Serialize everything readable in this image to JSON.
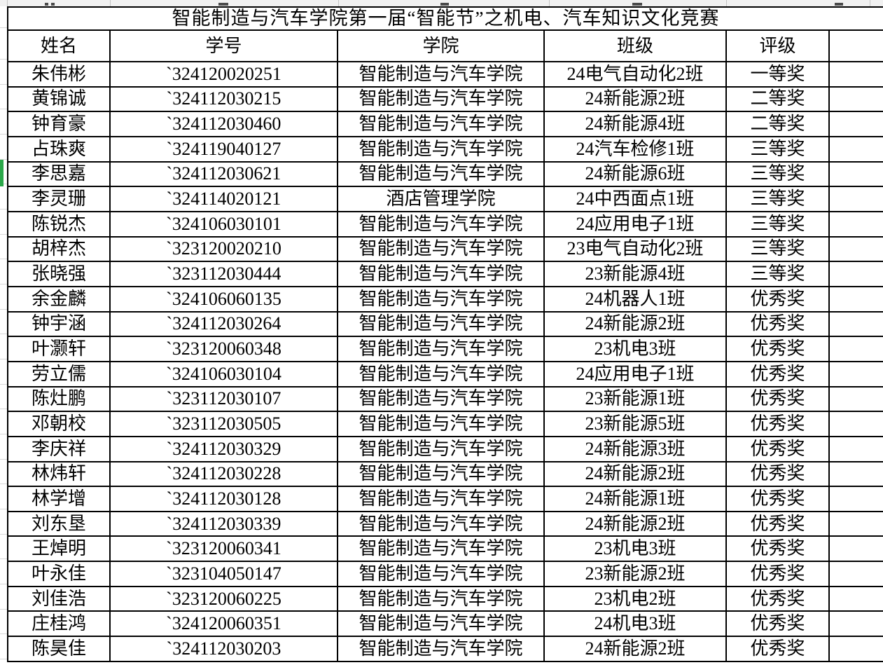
{
  "title": "智能制造与汽车学院第一届“智能节”之机电、汽车知识文化竞赛",
  "columns": [
    "姓名",
    "学号",
    "学院",
    "班级",
    "评级"
  ],
  "rows": [
    {
      "name": "朱伟彬",
      "id": "`324120020251",
      "college": "智能制造与汽车学院",
      "class": "24电气自动化2班",
      "award": "一等奖"
    },
    {
      "name": "黄锦诚",
      "id": "`324112030215",
      "college": "智能制造与汽车学院",
      "class": "24新能源2班",
      "award": "二等奖"
    },
    {
      "name": "钟育豪",
      "id": "`324112030460",
      "college": "智能制造与汽车学院",
      "class": "24新能源4班",
      "award": "二等奖"
    },
    {
      "name": "占珠爽",
      "id": "`324119040127",
      "college": "智能制造与汽车学院",
      "class": "24汽车检修1班",
      "award": "三等奖"
    },
    {
      "name": "李思嘉",
      "id": "`324112030621",
      "college": "智能制造与汽车学院",
      "class": "24新能源6班",
      "award": "三等奖"
    },
    {
      "name": "李灵珊",
      "id": "`324114020121",
      "college": "酒店管理学院",
      "class": "24中西面点1班",
      "award": "三等奖"
    },
    {
      "name": "陈锐杰",
      "id": "`324106030101",
      "college": "智能制造与汽车学院",
      "class": "24应用电子1班",
      "award": "三等奖"
    },
    {
      "name": "胡梓杰",
      "id": "`323120020210",
      "college": "智能制造与汽车学院",
      "class": "23电气自动化2班",
      "award": "三等奖"
    },
    {
      "name": "张晓强",
      "id": "`323112030444",
      "college": "智能制造与汽车学院",
      "class": "23新能源4班",
      "award": "三等奖"
    },
    {
      "name": "余金麟",
      "id": "`324106060135",
      "college": "智能制造与汽车学院",
      "class": "24机器人1班",
      "award": "优秀奖"
    },
    {
      "name": "钟宇涵",
      "id": "`324112030264",
      "college": "智能制造与汽车学院",
      "class": "24新能源2班",
      "award": "优秀奖"
    },
    {
      "name": "叶灏轩",
      "id": "`323120060348",
      "college": "智能制造与汽车学院",
      "class": "23机电3班",
      "award": "优秀奖"
    },
    {
      "name": "劳立儒",
      "id": "`324106030104",
      "college": "智能制造与汽车学院",
      "class": "24应用电子1班",
      "award": "优秀奖"
    },
    {
      "name": "陈灶鹏",
      "id": "`323112030107",
      "college": "智能制造与汽车学院",
      "class": "23新能源1班",
      "award": "优秀奖"
    },
    {
      "name": "邓朝校",
      "id": "`323112030505",
      "college": "智能制造与汽车学院",
      "class": "23新能源5班",
      "award": "优秀奖"
    },
    {
      "name": "李庆祥",
      "id": "`324112030329",
      "college": "智能制造与汽车学院",
      "class": "24新能源3班",
      "award": "优秀奖"
    },
    {
      "name": "林炜轩",
      "id": "`324112030228",
      "college": "智能制造与汽车学院",
      "class": "24新能源2班",
      "award": "优秀奖"
    },
    {
      "name": "林学增",
      "id": "`324112030128",
      "college": "智能制造与汽车学院",
      "class": "24新能源1班",
      "award": "优秀奖"
    },
    {
      "name": "刘东垦",
      "id": "`324112030339",
      "college": "智能制造与汽车学院",
      "class": "24新能源2班",
      "award": "优秀奖"
    },
    {
      "name": "王焯明",
      "id": "`323120060341",
      "college": "智能制造与汽车学院",
      "class": "23机电3班",
      "award": "优秀奖"
    },
    {
      "name": "叶永佳",
      "id": "`323104050147",
      "college": "智能制造与汽车学院",
      "class": "23新能源2班",
      "award": "优秀奖"
    },
    {
      "name": "刘佳浩",
      "id": "`323120060225",
      "college": "智能制造与汽车学院",
      "class": "23机电2班",
      "award": "优秀奖"
    },
    {
      "name": "庄桂鸿",
      "id": "`324120060351",
      "college": "智能制造与汽车学院",
      "class": "24机电3班",
      "award": "优秀奖"
    },
    {
      "name": "陈昊佳",
      "id": "`324112030203",
      "college": "智能制造与汽车学院",
      "class": "24新能源2班",
      "award": "优秀奖"
    }
  ],
  "selection": {
    "selected_row_name": "李思嘉"
  },
  "colors": {
    "border": "#000000",
    "grid_line": "#d8d8d8",
    "strip_background": "#f1f1f1",
    "selection_indicator": "#2ba84a"
  }
}
